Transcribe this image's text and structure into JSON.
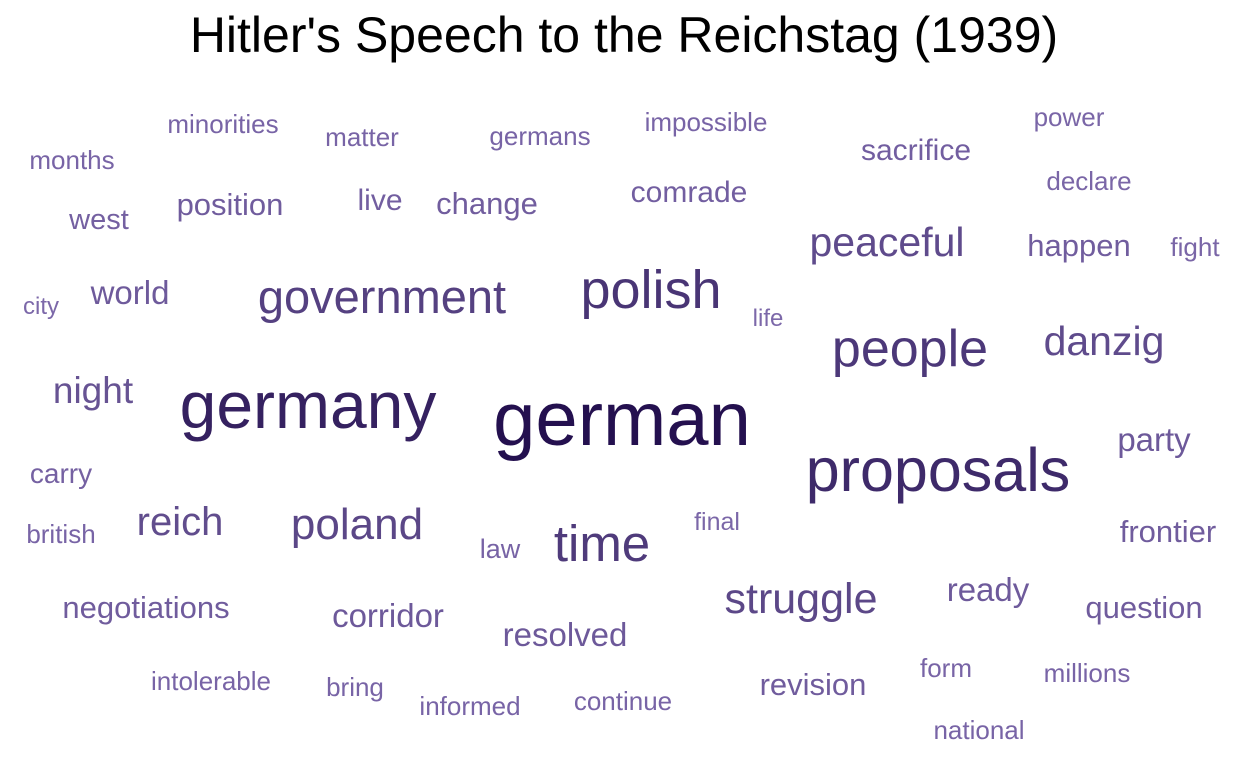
{
  "chart_data": {
    "type": "wordcloud",
    "title": "Hitler's Speech to the Reichstag (1939)",
    "value_range": [
      1,
      10
    ],
    "color_scale": [
      "#8f7bbd",
      "#24104f"
    ],
    "words": [
      {
        "text": "german",
        "weight": 10
      },
      {
        "text": "germany",
        "weight": 8.6
      },
      {
        "text": "proposals",
        "weight": 7.8
      },
      {
        "text": "polish",
        "weight": 6.9
      },
      {
        "text": "people",
        "weight": 6.6
      },
      {
        "text": "time",
        "weight": 6.4
      },
      {
        "text": "government",
        "weight": 5.9
      },
      {
        "text": "poland",
        "weight": 5.4
      },
      {
        "text": "struggle",
        "weight": 5.3
      },
      {
        "text": "peaceful",
        "weight": 5.0
      },
      {
        "text": "danzig",
        "weight": 5.0
      },
      {
        "text": "reich",
        "weight": 4.9
      },
      {
        "text": "night",
        "weight": 4.4
      },
      {
        "text": "party",
        "weight": 3.9
      },
      {
        "text": "resolved",
        "weight": 3.9
      },
      {
        "text": "corridor",
        "weight": 3.9
      },
      {
        "text": "world",
        "weight": 3.8
      },
      {
        "text": "ready",
        "weight": 3.8
      },
      {
        "text": "frontier",
        "weight": 3.6
      },
      {
        "text": "negotiations",
        "weight": 3.6
      },
      {
        "text": "revision",
        "weight": 3.6
      },
      {
        "text": "question",
        "weight": 3.6
      },
      {
        "text": "position",
        "weight": 3.6
      },
      {
        "text": "change",
        "weight": 3.5
      },
      {
        "text": "happen",
        "weight": 3.5
      },
      {
        "text": "live",
        "weight": 3.4
      },
      {
        "text": "sacrifice",
        "weight": 3.4
      },
      {
        "text": "comrade",
        "weight": 3.4
      },
      {
        "text": "west",
        "weight": 3.3
      },
      {
        "text": "carry",
        "weight": 3.2
      },
      {
        "text": "law",
        "weight": 3.0
      },
      {
        "text": "intolerable",
        "weight": 2.9
      },
      {
        "text": "informed",
        "weight": 2.9
      },
      {
        "text": "millions",
        "weight": 2.9
      },
      {
        "text": "continue",
        "weight": 2.9
      },
      {
        "text": "national",
        "weight": 2.9
      },
      {
        "text": "months",
        "weight": 2.9
      },
      {
        "text": "british",
        "weight": 2.9
      },
      {
        "text": "minorities",
        "weight": 2.9
      },
      {
        "text": "impossible",
        "weight": 2.9
      },
      {
        "text": "germans",
        "weight": 2.9
      },
      {
        "text": "bring",
        "weight": 2.9
      },
      {
        "text": "matter",
        "weight": 2.9
      },
      {
        "text": "form",
        "weight": 2.9
      },
      {
        "text": "power",
        "weight": 2.8
      },
      {
        "text": "declare",
        "weight": 2.8
      },
      {
        "text": "fight",
        "weight": 2.8
      },
      {
        "text": "final",
        "weight": 2.7
      },
      {
        "text": "city",
        "weight": 2.6
      },
      {
        "text": "life",
        "weight": 2.6
      }
    ]
  }
}
